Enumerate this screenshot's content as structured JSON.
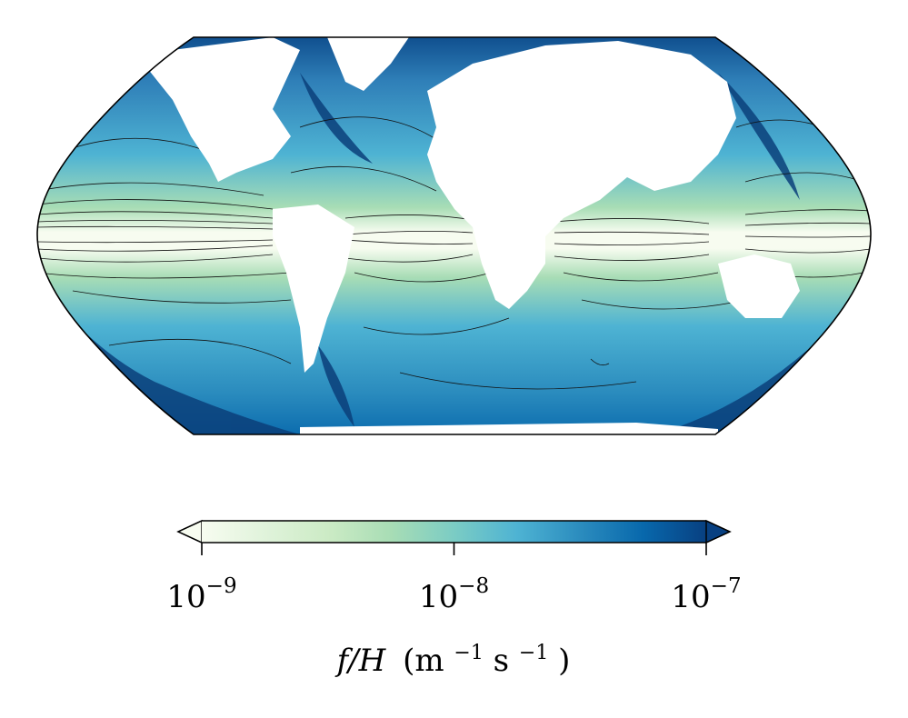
{
  "map": {
    "projection": "Robinson",
    "variable": "f/H",
    "colormap": "GnBu",
    "contours": "black",
    "land_color": "#ffffff"
  },
  "colorbar": {
    "scale": "log",
    "range": [
      1e-09,
      1e-07
    ],
    "extend": "both",
    "colors": [
      "#f7fcf0",
      "#e0f3db",
      "#ccebc5",
      "#a8ddb5",
      "#7bccc4",
      "#4eb3d3",
      "#2b8cbe",
      "#0868ac",
      "#084081"
    ],
    "ticks": [
      {
        "value": 1e-09,
        "base": "10",
        "exp": "−9"
      },
      {
        "value": 1e-08,
        "base": "10",
        "exp": "−8"
      },
      {
        "value": 1e-07,
        "base": "10",
        "exp": "−7"
      }
    ],
    "label": {
      "var": "f/H",
      "open": "(m",
      "exp1": "−1",
      "mid": " s",
      "exp2": "−1",
      "close": ")"
    }
  }
}
